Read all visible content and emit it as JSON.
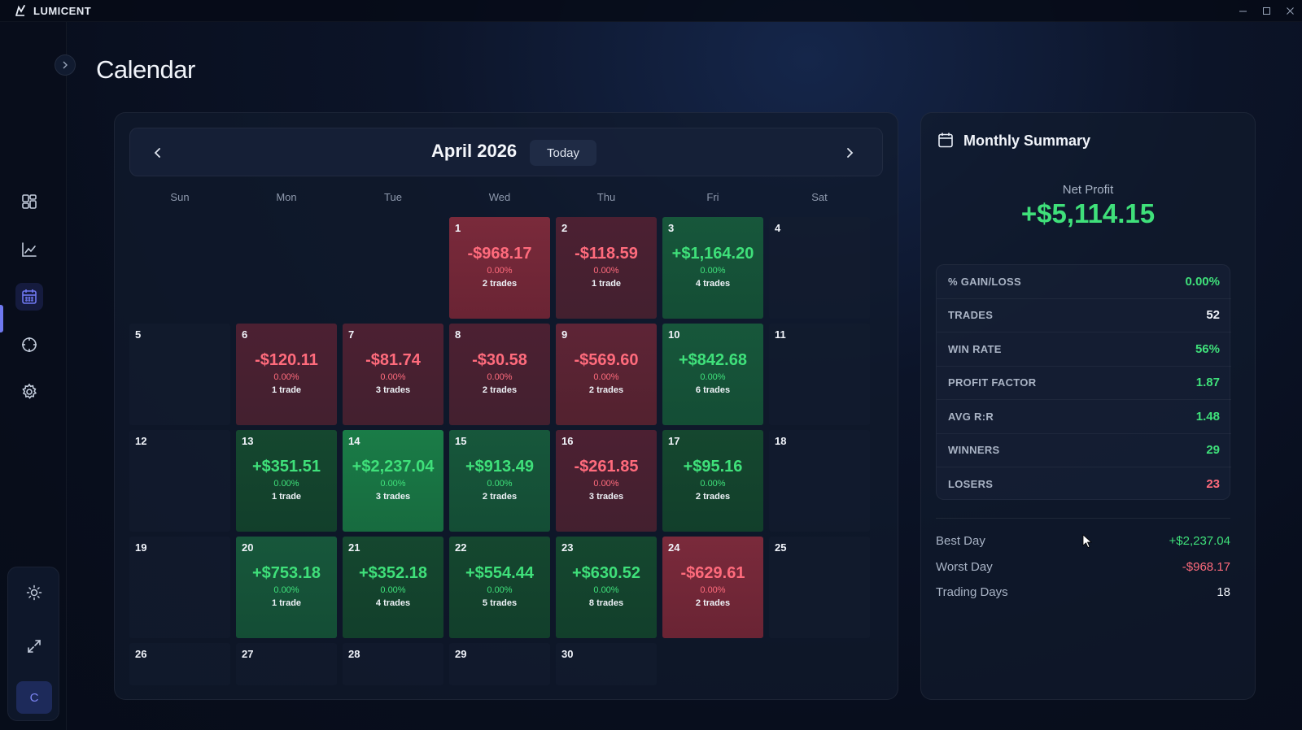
{
  "app": {
    "name": "LUMICENT"
  },
  "page": {
    "title": "Calendar"
  },
  "sidebar": {
    "items": [
      {
        "name": "dashboard",
        "icon": "dashboard-grid-icon"
      },
      {
        "name": "analytics",
        "icon": "line-chart-icon"
      },
      {
        "name": "calendar",
        "icon": "calendar-icon",
        "active": true
      },
      {
        "name": "target",
        "icon": "crosshair-icon"
      },
      {
        "name": "settings",
        "icon": "gear-icon"
      }
    ],
    "bottom": {
      "theme_icon": "sun-icon",
      "expand_icon": "expand-icon",
      "avatar_initial": "C"
    }
  },
  "calendar": {
    "month_label": "April 2026",
    "today_label": "Today",
    "weekdays": [
      "Sun",
      "Mon",
      "Tue",
      "Wed",
      "Thu",
      "Fri",
      "Sat"
    ],
    "cells": [
      {
        "day": "",
        "empty": true
      },
      {
        "day": "",
        "empty": true
      },
      {
        "day": "",
        "empty": true
      },
      {
        "day": "1",
        "pnl": "-$968.17",
        "pct": "0.00%",
        "trades": "2 trades",
        "type": "loss"
      },
      {
        "day": "2",
        "pnl": "-$118.59",
        "pct": "0.00%",
        "trades": "1 trade",
        "type": "loss light"
      },
      {
        "day": "3",
        "pnl": "+$1,164.20",
        "pct": "0.00%",
        "trades": "4 trades",
        "type": "win"
      },
      {
        "day": "4"
      },
      {
        "day": "5"
      },
      {
        "day": "6",
        "pnl": "-$120.11",
        "pct": "0.00%",
        "trades": "1 trade",
        "type": "loss light"
      },
      {
        "day": "7",
        "pnl": "-$81.74",
        "pct": "0.00%",
        "trades": "3 trades",
        "type": "loss light"
      },
      {
        "day": "8",
        "pnl": "-$30.58",
        "pct": "0.00%",
        "trades": "2 trades",
        "type": "loss light"
      },
      {
        "day": "9",
        "pnl": "-$569.60",
        "pct": "0.00%",
        "trades": "2 trades",
        "type": "loss mid"
      },
      {
        "day": "10",
        "pnl": "+$842.68",
        "pct": "0.00%",
        "trades": "6 trades",
        "type": "win"
      },
      {
        "day": "11"
      },
      {
        "day": "12"
      },
      {
        "day": "13",
        "pnl": "+$351.51",
        "pct": "0.00%",
        "trades": "1 trade",
        "type": "win dim"
      },
      {
        "day": "14",
        "pnl": "+$2,237.04",
        "pct": "0.00%",
        "trades": "3 trades",
        "type": "win strong"
      },
      {
        "day": "15",
        "pnl": "+$913.49",
        "pct": "0.00%",
        "trades": "2 trades",
        "type": "win"
      },
      {
        "day": "16",
        "pnl": "-$261.85",
        "pct": "0.00%",
        "trades": "3 trades",
        "type": "loss light"
      },
      {
        "day": "17",
        "pnl": "+$95.16",
        "pct": "0.00%",
        "trades": "2 trades",
        "type": "win dim"
      },
      {
        "day": "18"
      },
      {
        "day": "19"
      },
      {
        "day": "20",
        "pnl": "+$753.18",
        "pct": "0.00%",
        "trades": "1 trade",
        "type": "win"
      },
      {
        "day": "21",
        "pnl": "+$352.18",
        "pct": "0.00%",
        "trades": "4 trades",
        "type": "win dim"
      },
      {
        "day": "22",
        "pnl": "+$554.44",
        "pct": "0.00%",
        "trades": "5 trades",
        "type": "win dim"
      },
      {
        "day": "23",
        "pnl": "+$630.52",
        "pct": "0.00%",
        "trades": "8 trades",
        "type": "win dim"
      },
      {
        "day": "24",
        "pnl": "-$629.61",
        "pct": "0.00%",
        "trades": "2 trades",
        "type": "loss"
      },
      {
        "day": "25"
      },
      {
        "day": "26"
      },
      {
        "day": "27"
      },
      {
        "day": "28"
      },
      {
        "day": "29"
      },
      {
        "day": "30"
      },
      {
        "day": "",
        "empty": true
      },
      {
        "day": "",
        "empty": true
      }
    ]
  },
  "summary": {
    "title": "Monthly Summary",
    "net_profit_label": "Net Profit",
    "net_profit_value": "+$5,114.15",
    "stats": [
      {
        "label": "% GAIN/LOSS",
        "value": "0.00%",
        "tone": "pos"
      },
      {
        "label": "TRADES",
        "value": "52",
        "tone": "white"
      },
      {
        "label": "WIN RATE",
        "value": "56%",
        "tone": "pos"
      },
      {
        "label": "PROFIT FACTOR",
        "value": "1.87",
        "tone": "pos"
      },
      {
        "label": "AVG R:R",
        "value": "1.48",
        "tone": "pos"
      },
      {
        "label": "WINNERS",
        "value": "29",
        "tone": "pos"
      },
      {
        "label": "LOSERS",
        "value": "23",
        "tone": "neg"
      }
    ],
    "best_day_label": "Best Day",
    "best_day_value": "+$2,237.04",
    "worst_day_label": "Worst Day",
    "worst_day_value": "-$968.17",
    "trading_days_label": "Trading Days",
    "trading_days_value": "18"
  },
  "colors": {
    "positive": "#3fe07a",
    "negative": "#ff6b7c",
    "accent": "#6f78f0"
  }
}
